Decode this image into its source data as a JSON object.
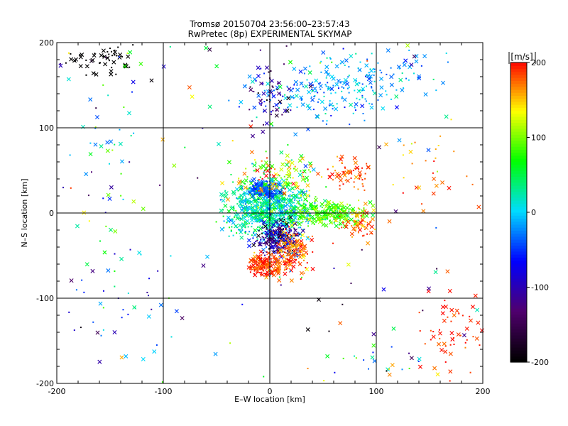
{
  "chart_data": {
    "type": "scatter",
    "title": "Tromsø 20150704 23:56:00–23:57:43",
    "subtitle": "RwPretec (8p) EXPERIMENTAL SKYMAP",
    "xlabel": "E–W location [km]",
    "ylabel": "N–S location [km]",
    "xlim": [
      -200,
      200
    ],
    "ylim": [
      -200,
      200
    ],
    "x_ticks": [
      -200,
      -100,
      0,
      100,
      200
    ],
    "y_ticks": [
      -200,
      -100,
      0,
      100,
      200
    ],
    "x_tick_labels": [
      "-200",
      "-100",
      "0",
      "100",
      "200"
    ],
    "y_tick_labels": [
      "-200",
      "-100",
      "0",
      "100",
      "200"
    ],
    "grid": true,
    "colorbar": {
      "label": "[m/s]",
      "range": [
        -200,
        200
      ],
      "ticks": [
        200,
        100,
        0,
        -100,
        -200
      ],
      "tick_labels": [
        "200",
        "100",
        "0",
        "-100",
        "-200"
      ],
      "colormap": [
        "#000000",
        "#50006e",
        "#0000ff",
        "#00dcff",
        "#00ff00",
        "#ffff00",
        "#ff0000"
      ]
    },
    "marker_types": [
      "cross",
      "dot"
    ]
  }
}
